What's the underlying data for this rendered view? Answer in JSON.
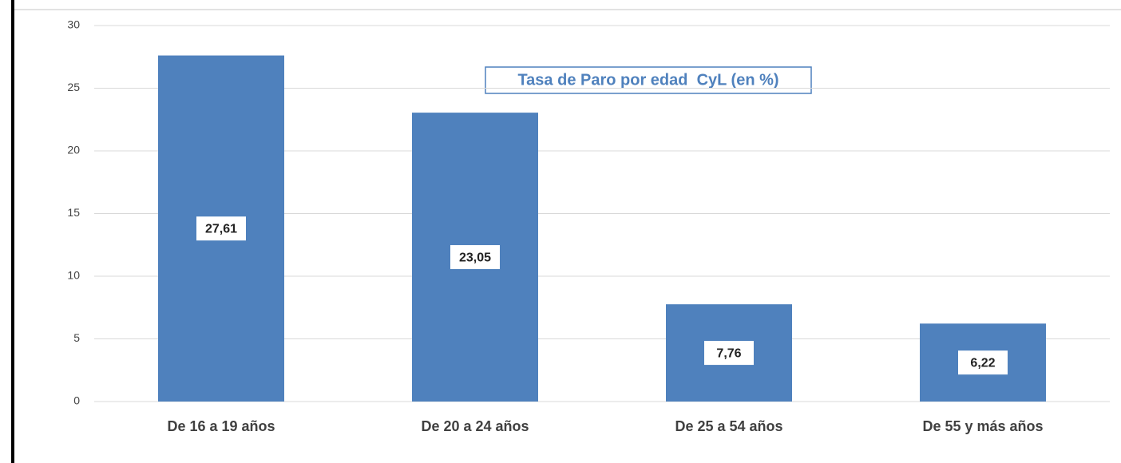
{
  "chart_data": {
    "type": "bar",
    "title": "Tasa de Paro por edad  CyL (en %)",
    "categories": [
      "De 16 a 19 años",
      "De 20 a 24 años",
      "De 25 a 54 años",
      "De 55 y más años"
    ],
    "values": [
      27.61,
      23.05,
      7.76,
      6.22
    ],
    "value_labels": [
      "27,61",
      "23,05",
      "7,76",
      "6,22"
    ],
    "color": "#4f81bd",
    "ylim": [
      0,
      30
    ],
    "yticks": [
      0,
      5,
      10,
      15,
      20,
      25,
      30
    ],
    "grid": true
  }
}
